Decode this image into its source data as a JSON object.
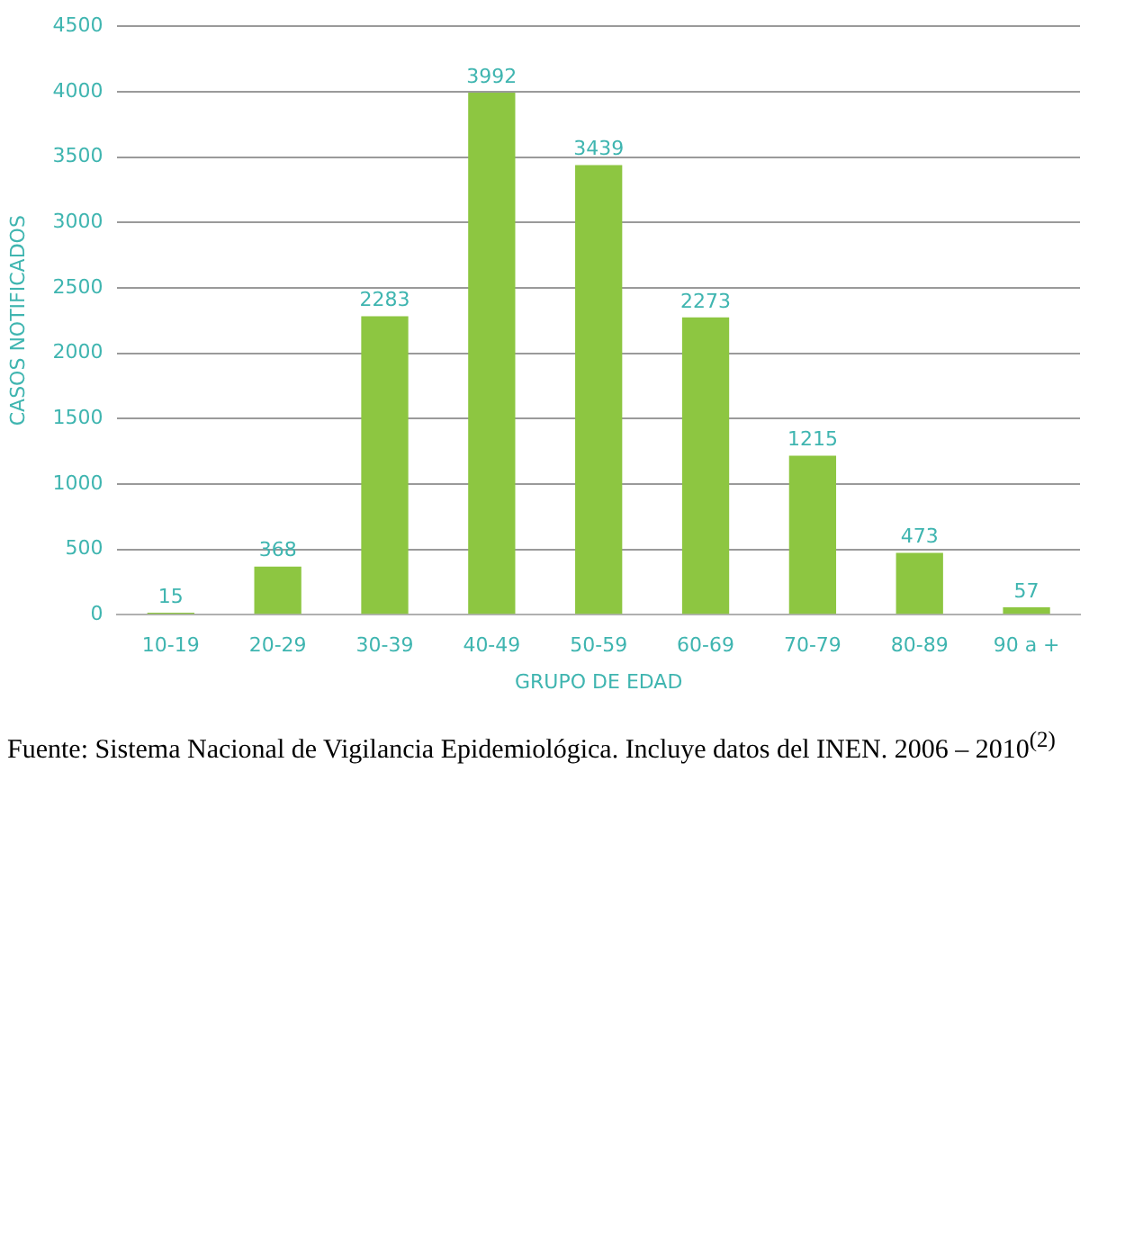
{
  "chart_data": {
    "type": "bar",
    "xlabel": "GRUPO DE EDAD",
    "ylabel": "CASOS NOTIFICADOS",
    "categories": [
      "10-19",
      "20-29",
      "30-39",
      "40-49",
      "50-59",
      "60-69",
      "70-79",
      "80-89",
      "90 a +"
    ],
    "values": [
      15,
      368,
      2283,
      3992,
      3439,
      2273,
      1215,
      473,
      57
    ],
    "color": "#8dc641",
    "ylim": [
      0,
      4500
    ],
    "yticks": [
      0,
      500,
      1000,
      1500,
      2000,
      2500,
      3000,
      3500,
      4000,
      4500
    ],
    "grid": "y",
    "data_labels": true,
    "annotations": [
      "Fuente: Sistema Nacional de Vigilancia Epidemiológica. Incluye datos del INEN. 2006 – 2010$^{(2)}$"
    ]
  }
}
